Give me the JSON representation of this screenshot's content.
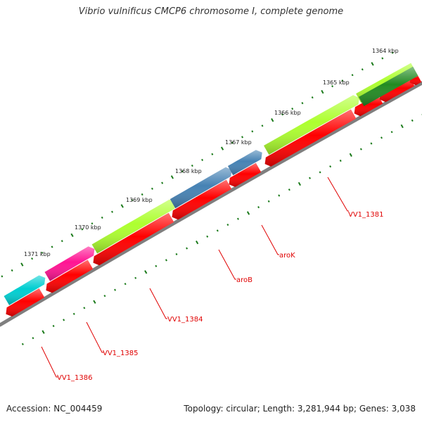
{
  "title": "Vibrio vulnificus CMCP6 chromosome I, complete genome",
  "footer": {
    "accession": "Accession: NC_004459",
    "summary": "Topology: circular; Length: 3,281,944 bp; Genes: 3,038"
  },
  "kbp_labels": [
    "1364 kbp",
    "1365 kbp",
    "1366 kbp",
    "1367 kbp",
    "1368 kbp",
    "1369 kbp",
    "1370 kbp",
    "1371 kbp"
  ],
  "genes": [
    {
      "id": "gene-vv1-1381",
      "label": "VV1_1381"
    },
    {
      "id": "gene-arok",
      "label": "aroK"
    },
    {
      "id": "gene-arob",
      "label": "aroB"
    },
    {
      "id": "gene-vv1-1384",
      "label": "VV1_1384"
    },
    {
      "id": "gene-vv1-1385",
      "label": "VV1_1385"
    },
    {
      "id": "gene-vv1-1386",
      "label": "VV1_1386"
    }
  ],
  "colors": {
    "backbone": "#7f7f7f",
    "red": "#ff0000",
    "lime": "#adff2f",
    "steelblue": "#4682b4",
    "deeppink": "#ff1493",
    "turquoise": "#00ced1",
    "green": "#228b22",
    "ticks": "#1a7a1a",
    "label": "#e00000"
  }
}
